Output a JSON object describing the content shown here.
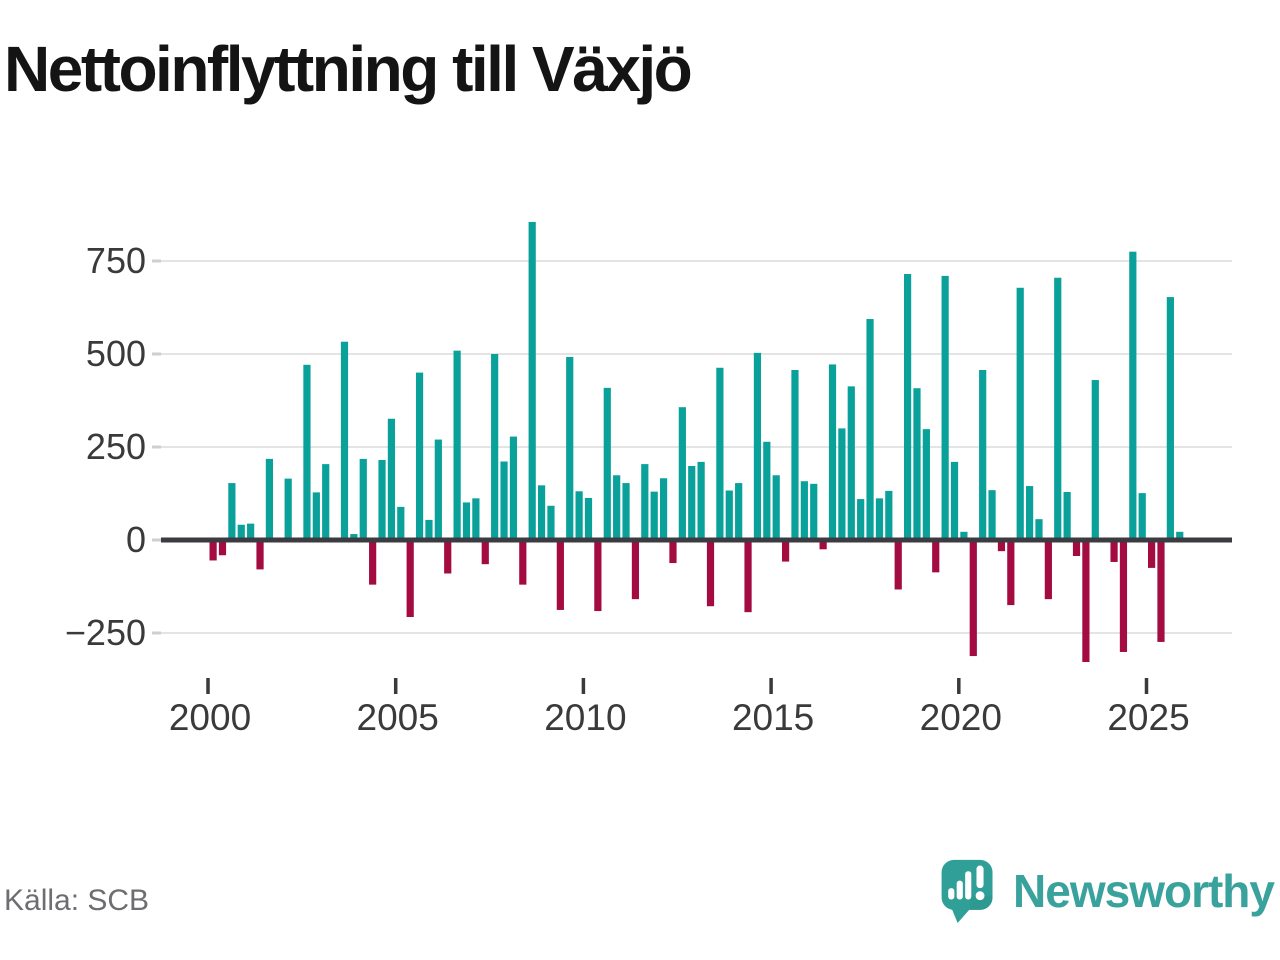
{
  "title": "Nettoinflyttning till Växjö",
  "source": "Källa: SCB",
  "branding": {
    "name": "Newsworthy"
  },
  "colors": {
    "positive": "#0aa19b",
    "negative": "#a40b41",
    "grid": "#e4e4e4",
    "zero_axis": "#3b3b41",
    "axis_text": "#3a3a3a",
    "y_tick_dash": "#cfcfcf",
    "muted_text": "#6d6d72",
    "brand_teal": "#3aa29c",
    "logo_bubble": "#2f9f98"
  },
  "chart_data": {
    "type": "bar",
    "title": "Nettoinflyttning till Växjö",
    "xlabel": "",
    "ylabel": "",
    "ylim": [
      -350,
      900
    ],
    "grid": "horizontal",
    "legend": "none",
    "frequency": "quarterly",
    "y_ticks": [
      {
        "value": 750,
        "label": "750"
      },
      {
        "value": 500,
        "label": "500"
      },
      {
        "value": 250,
        "label": "250"
      },
      {
        "value": 0,
        "label": "0"
      },
      {
        "value": -250,
        "label": "−250"
      }
    ],
    "x_ticks": [
      {
        "value": 2000,
        "label": "2000"
      },
      {
        "value": 2005,
        "label": "2005"
      },
      {
        "value": 2010,
        "label": "2010"
      },
      {
        "value": 2015,
        "label": "2015"
      },
      {
        "value": 2020,
        "label": "2020"
      },
      {
        "value": 2025,
        "label": "2025"
      }
    ],
    "x": [
      "2000Q1",
      "2000Q2",
      "2000Q3",
      "2000Q4",
      "2001Q1",
      "2001Q2",
      "2001Q3",
      "2001Q4",
      "2002Q1",
      "2002Q2",
      "2002Q3",
      "2002Q4",
      "2003Q1",
      "2003Q2",
      "2003Q3",
      "2003Q4",
      "2004Q1",
      "2004Q2",
      "2004Q3",
      "2004Q4",
      "2005Q1",
      "2005Q2",
      "2005Q3",
      "2005Q4",
      "2006Q1",
      "2006Q2",
      "2006Q3",
      "2006Q4",
      "2007Q1",
      "2007Q2",
      "2007Q3",
      "2007Q4",
      "2008Q1",
      "2008Q2",
      "2008Q3",
      "2008Q4",
      "2009Q1",
      "2009Q2",
      "2009Q3",
      "2009Q4",
      "2010Q1",
      "2010Q2",
      "2010Q3",
      "2010Q4",
      "2011Q1",
      "2011Q2",
      "2011Q3",
      "2011Q4",
      "2012Q1",
      "2012Q2",
      "2012Q3",
      "2012Q4",
      "2013Q1",
      "2013Q2",
      "2013Q3",
      "2013Q4",
      "2014Q1",
      "2014Q2",
      "2014Q3",
      "2014Q4",
      "2015Q1",
      "2015Q2",
      "2015Q3",
      "2015Q4",
      "2016Q1",
      "2016Q2",
      "2016Q3",
      "2016Q4",
      "2017Q1",
      "2017Q2",
      "2017Q3",
      "2017Q4",
      "2018Q1",
      "2018Q2",
      "2018Q3",
      "2018Q4",
      "2019Q1",
      "2019Q2",
      "2019Q3",
      "2019Q4",
      "2020Q1",
      "2020Q2",
      "2020Q3",
      "2020Q4",
      "2021Q1",
      "2021Q2",
      "2021Q3",
      "2021Q4",
      "2022Q1",
      "2022Q2",
      "2022Q3",
      "2022Q4",
      "2023Q1",
      "2023Q2",
      "2023Q3",
      "2023Q4",
      "2024Q1",
      "2024Q2",
      "2024Q3",
      "2024Q4",
      "2025Q1",
      "2025Q2",
      "2025Q3",
      "2025Q4"
    ],
    "values": [
      -55,
      -41,
      153,
      41,
      44,
      -79,
      218,
      0,
      165,
      0,
      471,
      128,
      204,
      0,
      533,
      16,
      218,
      -120,
      215,
      326,
      89,
      -207,
      450,
      54,
      270,
      -90,
      509,
      101,
      112,
      -65,
      500,
      211,
      278,
      -120,
      855,
      147,
      92,
      -188,
      492,
      131,
      113,
      -191,
      409,
      174,
      153,
      -159,
      204,
      130,
      166,
      -62,
      357,
      199,
      210,
      -178,
      463,
      133,
      153,
      -194,
      503,
      264,
      174,
      -58,
      457,
      158,
      151,
      -25,
      472,
      300,
      413,
      110,
      594,
      112,
      132,
      -133,
      715,
      408,
      298,
      -87,
      710,
      210,
      22,
      -312,
      457,
      134,
      -30,
      -175,
      678,
      145,
      56,
      -159,
      705,
      129,
      -43,
      -328,
      430,
      0,
      -59,
      -301,
      775,
      126,
      -75,
      -274,
      653,
      22
    ]
  }
}
